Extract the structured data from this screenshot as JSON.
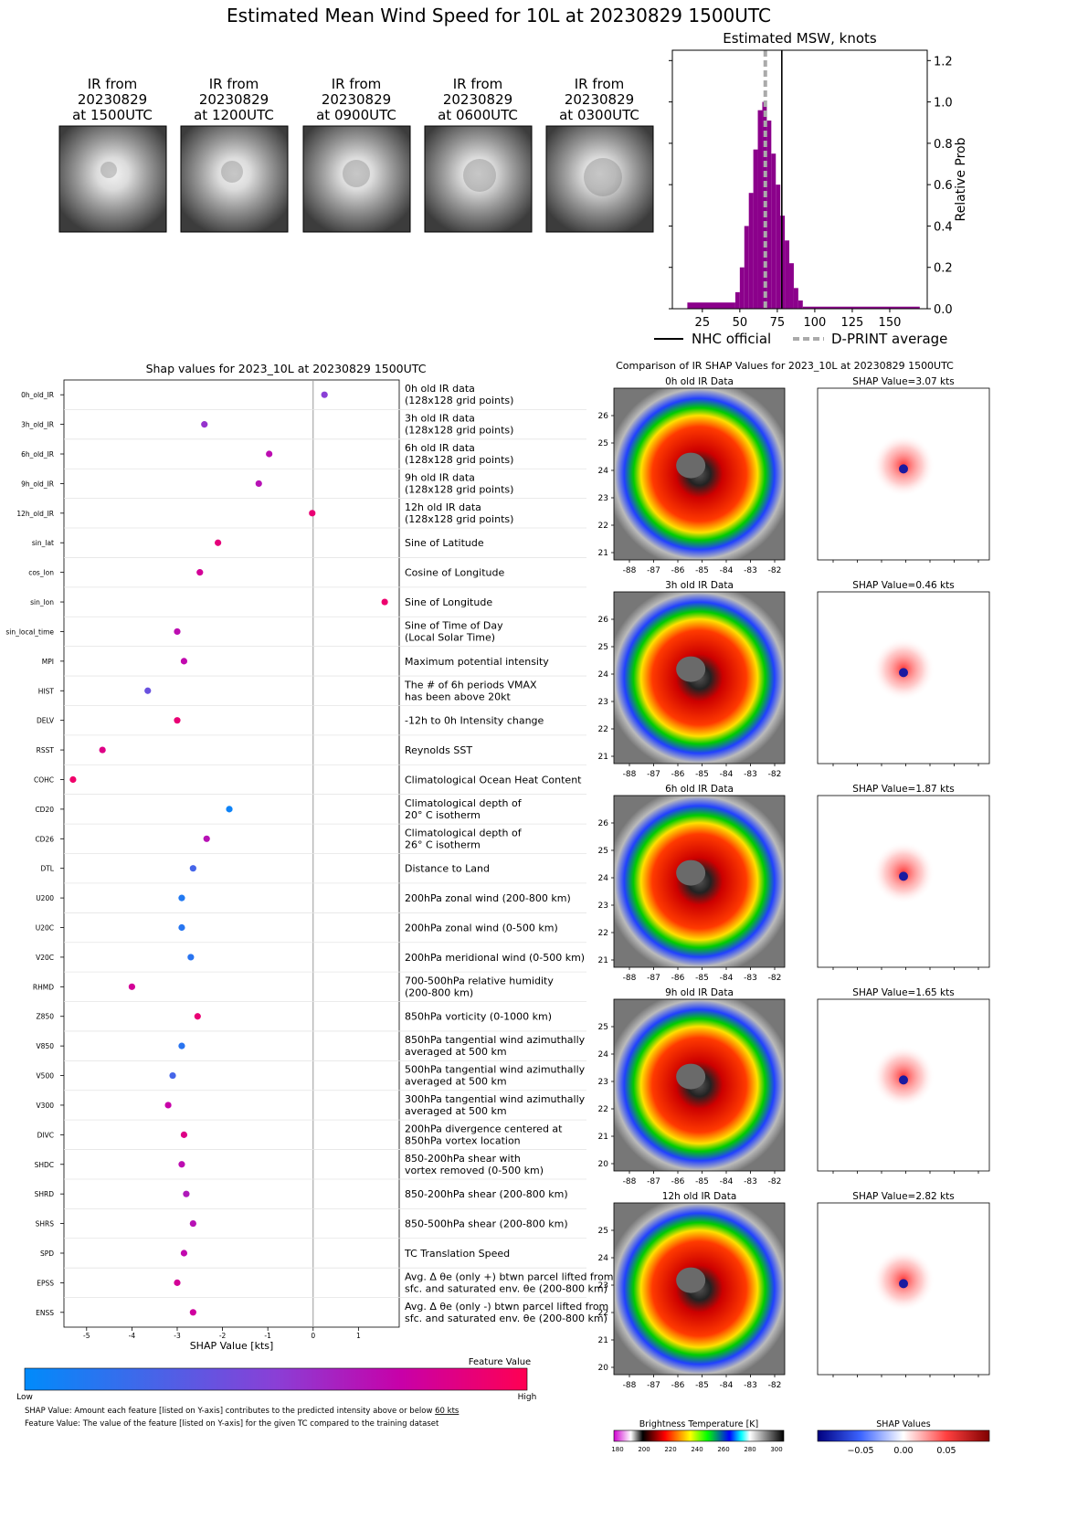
{
  "main_title": "Estimated Mean Wind Speed for 10L at 20230829 1500UTC",
  "ir_thumbs": [
    {
      "l1": "IR from",
      "l2": "20230829",
      "l3": "at 1500UTC"
    },
    {
      "l1": "IR from",
      "l2": "20230829",
      "l3": "at 1200UTC"
    },
    {
      "l1": "IR from",
      "l2": "20230829",
      "l3": "at 0900UTC"
    },
    {
      "l1": "IR from",
      "l2": "20230829",
      "l3": "at 0600UTC"
    },
    {
      "l1": "IR from",
      "l2": "20230829",
      "l3": "at 0300UTC"
    }
  ],
  "colors": {
    "hist": "#8b008b",
    "ref_gray": "#aaaaaa",
    "shap_low": "#008bfb",
    "shap_high": "#ff0052"
  },
  "chart_data": [
    {
      "type": "bar",
      "title": "Estimated MSW, knots",
      "ylabel": "Relative Prob",
      "xlim": [
        5,
        175
      ],
      "ylim": [
        0,
        1.25
      ],
      "xticks": [
        25,
        50,
        75,
        100,
        125,
        150
      ],
      "yticks": [
        "0.0",
        "0.2",
        "0.4",
        "0.6",
        "0.8",
        "1.0",
        "1.2"
      ],
      "bins": [
        [
          15,
          47,
          0.03
        ],
        [
          47,
          50,
          0.08
        ],
        [
          50,
          53,
          0.2
        ],
        [
          53,
          56,
          0.4
        ],
        [
          56,
          59,
          0.56
        ],
        [
          59,
          62,
          0.77
        ],
        [
          62,
          65,
          0.96
        ],
        [
          65,
          68,
          1.0
        ],
        [
          68,
          71,
          0.91
        ],
        [
          71,
          74,
          0.75
        ],
        [
          74,
          77,
          0.6
        ],
        [
          77,
          80,
          0.45
        ],
        [
          80,
          83,
          0.33
        ],
        [
          83,
          86,
          0.22
        ],
        [
          86,
          89,
          0.1
        ],
        [
          89,
          92,
          0.04
        ],
        [
          92,
          170,
          0.01
        ]
      ],
      "nhc_official": 78,
      "dprint_average": 67,
      "legend": [
        "NHC official",
        "D-PRINT average"
      ]
    },
    {
      "type": "scatter",
      "title": "Shap values for 2023_10L at 20230829 1500UTC",
      "xlabel": "SHAP Value [kts]",
      "xlim": [
        -5.5,
        1.9
      ],
      "xticks": [
        "-5",
        "-4",
        "-3",
        "-2",
        "-1",
        "0",
        "1"
      ],
      "features": [
        {
          "code": "0h_old_IR",
          "desc1": "0h old IR data",
          "desc2": "(128x128 grid points)",
          "shap": 0.25,
          "fv": 0.5
        },
        {
          "code": "3h_old_IR",
          "desc1": "3h old IR data",
          "desc2": "(128x128 grid points)",
          "shap": -2.4,
          "fv": 0.55
        },
        {
          "code": "6h_old_IR",
          "desc1": "6h old IR data",
          "desc2": "(128x128 grid points)",
          "shap": -0.97,
          "fv": 0.7
        },
        {
          "code": "9h_old_IR",
          "desc1": "9h old IR data",
          "desc2": "(128x128 grid points)",
          "shap": -1.2,
          "fv": 0.68
        },
        {
          "code": "12h_old_IR",
          "desc1": "12h old IR data",
          "desc2": "(128x128 grid points)",
          "shap": -0.02,
          "fv": 0.9
        },
        {
          "code": "sin_lat",
          "desc1": "Sine of Latitude",
          "desc2": "",
          "shap": -2.1,
          "fv": 0.88
        },
        {
          "code": "cos_lon",
          "desc1": "Cosine of Longitude",
          "desc2": "",
          "shap": -2.5,
          "fv": 0.8
        },
        {
          "code": "sin_lon",
          "desc1": "Sine of Longitude",
          "desc2": "",
          "shap": 1.58,
          "fv": 0.92
        },
        {
          "code": "sin_local_time",
          "desc1": "Sine of Time of Day",
          "desc2": "(Local Solar Time)",
          "shap": -3.0,
          "fv": 0.7
        },
        {
          "code": "MPI",
          "desc1": "Maximum potential intensity",
          "desc2": "",
          "shap": -2.85,
          "fv": 0.72
        },
        {
          "code": "HIST",
          "desc1": "The # of 6h periods VMAX",
          "desc2": "has been above 20kt",
          "shap": -3.65,
          "fv": 0.38
        },
        {
          "code": "DELV",
          "desc1": "-12h to 0h Intensity change",
          "desc2": "",
          "shap": -3.0,
          "fv": 0.9
        },
        {
          "code": "RSST",
          "desc1": "Reynolds SST",
          "desc2": "",
          "shap": -4.65,
          "fv": 0.85
        },
        {
          "code": "COHC",
          "desc1": "Climatological Ocean Heat Content",
          "desc2": "",
          "shap": -5.3,
          "fv": 0.93
        },
        {
          "code": "CD20",
          "desc1": "Climatological depth of",
          "desc2": "20° C isotherm",
          "shap": -1.85,
          "fv": 0.05
        },
        {
          "code": "CD26",
          "desc1": "Climatological depth of",
          "desc2": "26° C isotherm",
          "shap": -2.35,
          "fv": 0.68
        },
        {
          "code": "DTL",
          "desc1": "Distance to Land",
          "desc2": "",
          "shap": -2.65,
          "fv": 0.25
        },
        {
          "code": "U200",
          "desc1": "200hPa zonal wind (200-800 km)",
          "desc2": "",
          "shap": -2.9,
          "fv": 0.12
        },
        {
          "code": "U20C",
          "desc1": "200hPa zonal wind (0-500 km)",
          "desc2": "",
          "shap": -2.9,
          "fv": 0.14
        },
        {
          "code": "V20C",
          "desc1": "200hPa meridional wind (0-500 km)",
          "desc2": "",
          "shap": -2.7,
          "fv": 0.15
        },
        {
          "code": "RHMD",
          "desc1": "700-500hPa relative humidity",
          "desc2": "(200-800 km)",
          "shap": -4.0,
          "fv": 0.8
        },
        {
          "code": "Z850",
          "desc1": "850hPa vorticity (0-1000 km)",
          "desc2": "",
          "shap": -2.55,
          "fv": 0.9
        },
        {
          "code": "V850",
          "desc1": "850hPa tangential wind azimuthally",
          "desc2": "averaged at 500 km",
          "shap": -2.9,
          "fv": 0.15
        },
        {
          "code": "V500",
          "desc1": "500hPa tangential wind azimuthally",
          "desc2": "averaged at 500 km",
          "shap": -3.1,
          "fv": 0.25
        },
        {
          "code": "V300",
          "desc1": "300hPa tangential wind azimuthally",
          "desc2": "averaged at 500 km",
          "shap": -3.2,
          "fv": 0.75
        },
        {
          "code": "DIVC",
          "desc1": "200hPa divergence centered at",
          "desc2": "850hPa vortex location",
          "shap": -2.85,
          "fv": 0.85
        },
        {
          "code": "SHDC",
          "desc1": "850-200hPa shear with",
          "desc2": "vortex removed (0-500 km)",
          "shap": -2.9,
          "fv": 0.7
        },
        {
          "code": "SHRD",
          "desc1": "850-200hPa shear (200-800 km)",
          "desc2": "",
          "shap": -2.8,
          "fv": 0.65
        },
        {
          "code": "SHRS",
          "desc1": "850-500hPa shear (200-800 km)",
          "desc2": "",
          "shap": -2.65,
          "fv": 0.68
        },
        {
          "code": "SPD",
          "desc1": "TC Translation Speed",
          "desc2": "",
          "shap": -2.85,
          "fv": 0.72
        },
        {
          "code": "EPSS",
          "desc1": "Avg. Δ θe (only +) btwn parcel lifted from",
          "desc2": "sfc. and saturated env. θe (200-800 km)",
          "shap": -3.0,
          "fv": 0.8
        },
        {
          "code": "ENSS",
          "desc1": "Avg. Δ θe (only -) btwn parcel lifted from",
          "desc2": "sfc. and saturated env. θe (200-800 km)",
          "shap": -2.65,
          "fv": 0.78
        }
      ]
    }
  ],
  "colorbar": {
    "title": "Feature Value",
    "low": "Low",
    "high": "High"
  },
  "footnote1_pre": "SHAP Value: Amount each feature [listed on Y-axis] contributes to the predicted intensity above or below ",
  "footnote1_link": "60 kts",
  "footnote2": "Feature Value: The value of the feature [listed on Y-axis] for the given TC compared to the training dataset",
  "comparison": {
    "title": "Comparison of IR SHAP Values for 2023_10L at 20230829 1500UTC",
    "rows": [
      {
        "ir_title": "0h old IR Data",
        "shap_title": "SHAP Value=3.07 kts",
        "yticks": [
          "26",
          "25",
          "24",
          "23",
          "22",
          "21"
        ]
      },
      {
        "ir_title": "3h old IR Data",
        "shap_title": "SHAP Value=0.46 kts",
        "yticks": [
          "26",
          "25",
          "24",
          "23",
          "22",
          "21"
        ]
      },
      {
        "ir_title": "6h old IR Data",
        "shap_title": "SHAP Value=1.87 kts",
        "yticks": [
          "26",
          "25",
          "24",
          "23",
          "22",
          "21"
        ]
      },
      {
        "ir_title": "9h old IR Data",
        "shap_title": "SHAP Value=1.65 kts",
        "yticks": [
          "25",
          "24",
          "23",
          "22",
          "21",
          "20"
        ]
      },
      {
        "ir_title": "12h old IR Data",
        "shap_title": "SHAP Value=2.82 kts",
        "yticks": [
          "25",
          "24",
          "23",
          "22",
          "21",
          "20"
        ]
      }
    ],
    "xticks": [
      "-88",
      "-87",
      "-86",
      "-85",
      "-84",
      "-83",
      "-82"
    ],
    "bt_label": "Brightness Temperature [K]",
    "bt_ticks": [
      "180",
      "200",
      "220",
      "240",
      "260",
      "280",
      "300"
    ],
    "shap_label": "SHAP Values",
    "shap_ticks": [
      "−0.05",
      "0.00",
      "0.05"
    ]
  }
}
